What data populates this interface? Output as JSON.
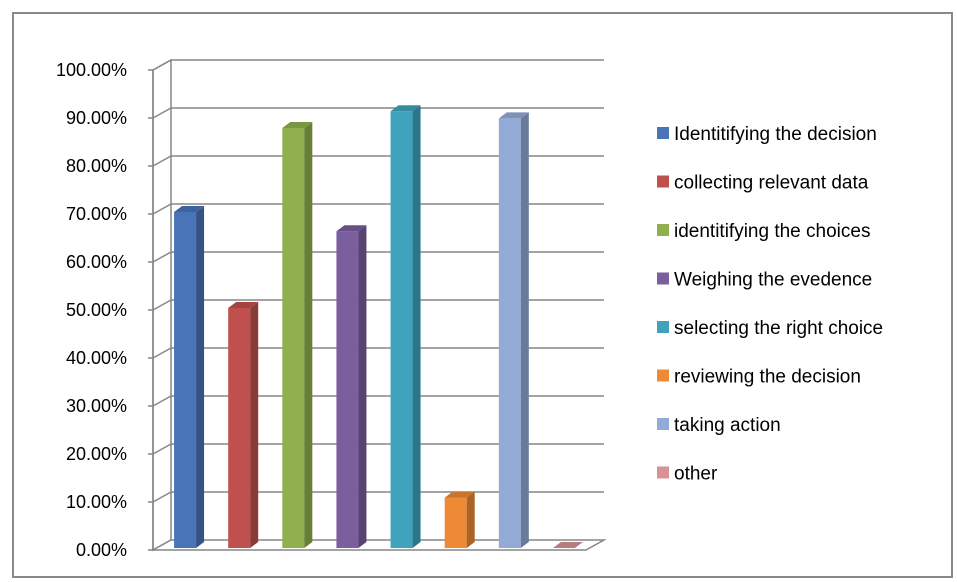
{
  "chart_data": {
    "type": "bar",
    "categories": [
      "Identitifying the decision",
      "collecting relevant data",
      "identitifying the choices",
      "Weighing the evedence",
      "selecting the right choice",
      "reviewing the decision",
      "taking action",
      "other"
    ],
    "values": [
      0.7,
      0.5,
      0.875,
      0.66,
      0.91,
      0.105,
      0.895,
      0.0
    ],
    "colors": [
      "#4a74b8",
      "#c0504d",
      "#8fb04c",
      "#7a5e9e",
      "#3fa3bd",
      "#ee8a35",
      "#94aad6",
      "#d79393"
    ],
    "yticks": [
      "0.00%",
      "10.00%",
      "20.00%",
      "30.00%",
      "40.00%",
      "50.00%",
      "60.00%",
      "70.00%",
      "80.00%",
      "90.00%",
      "100.00%"
    ],
    "ylim": [
      0,
      1
    ],
    "grid": true,
    "legend_position": "right",
    "title": "",
    "xlabel": "",
    "ylabel": ""
  }
}
